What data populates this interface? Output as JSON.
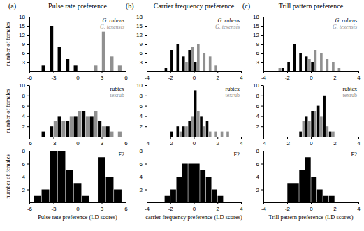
{
  "chart_data": [
    {
      "type": "histogram",
      "title": "(a)",
      "subtitle": "Pulse rate preference",
      "y_label": "number of females",
      "bins": [
        -4.5,
        -3.5,
        -2.5,
        -1.5,
        -0.5,
        0.5,
        1.5,
        2.5,
        3.5,
        4.5,
        5.5
      ],
      "series": [
        {
          "name": "G. rubens",
          "color": "#000000",
          "values": [
            2,
            15,
            8,
            4,
            2,
            0,
            0,
            0,
            0,
            0
          ]
        },
        {
          "name": "G. texensis",
          "color": "#909090",
          "values": [
            0,
            0,
            0,
            0,
            0,
            0,
            2,
            13,
            5,
            2
          ]
        }
      ],
      "xlim": [
        -6,
        6
      ],
      "xticks": [
        -6,
        -3,
        0,
        3,
        6
      ],
      "ylim": [
        0,
        18
      ],
      "yticks": [
        3,
        6,
        9,
        12,
        15,
        18
      ],
      "legend": "upper right"
    },
    {
      "type": "histogram",
      "title": "(b)",
      "subtitle": "Carrier frequency preference",
      "bins": [
        -3,
        -2.5,
        -2,
        -1.5,
        -1,
        -0.5,
        0,
        0.5,
        1,
        1.5,
        2,
        2.5,
        3
      ],
      "series": [
        {
          "name": "G. rubens",
          "color": "#000000",
          "values": [
            0,
            1,
            7,
            9,
            5,
            7,
            3,
            0,
            0,
            0,
            0,
            0
          ]
        },
        {
          "name": "G. texensis",
          "color": "#909090",
          "values": [
            0,
            0,
            0,
            0,
            3,
            8,
            9,
            6,
            5,
            2,
            0,
            0
          ]
        }
      ],
      "xlim": [
        -4,
        4
      ],
      "xticks": [
        -4,
        -2,
        0,
        2,
        4
      ],
      "ylim": [
        0,
        18
      ],
      "yticks": [
        3,
        6,
        9,
        12,
        15,
        18
      ],
      "legend": "upper right"
    },
    {
      "type": "histogram",
      "title": "(c)",
      "subtitle": "Trill pattern preference",
      "bins": [
        -3,
        -2.5,
        -2,
        -1.5,
        -1,
        -0.5,
        0,
        0.5,
        1,
        1.5,
        2,
        2.5,
        3
      ],
      "series": [
        {
          "name": "G. rubens",
          "color": "#000000",
          "values": [
            0,
            1,
            3,
            9,
            6,
            5,
            3,
            0,
            0,
            0,
            0,
            0
          ]
        },
        {
          "name": "G. texensis",
          "color": "#909090",
          "values": [
            1,
            0,
            0,
            0,
            0,
            4,
            7,
            6,
            4,
            3,
            1,
            0
          ]
        }
      ],
      "xlim": [
        -4,
        4
      ],
      "xticks": [
        -4,
        -2,
        0,
        2,
        4
      ],
      "ylim": [
        0,
        18
      ],
      "yticks": [
        3,
        6,
        9,
        12,
        15,
        18
      ],
      "legend": "upper right"
    },
    {
      "type": "histogram",
      "y_label": "number of females",
      "bins": [
        -5.5,
        -4.5,
        -3.5,
        -2.5,
        -1.5,
        -0.5,
        0.5,
        1.5,
        2.5,
        3.5,
        4.5,
        5.5
      ],
      "series": [
        {
          "name": "rubtex",
          "color": "#000000",
          "values": [
            0,
            1,
            2,
            4,
            3,
            4,
            5,
            4,
            3,
            2,
            0
          ]
        },
        {
          "name": "texrub",
          "color": "#909090",
          "values": [
            0,
            0,
            3,
            3,
            4,
            5,
            4,
            5,
            2,
            1,
            1
          ]
        }
      ],
      "xlim": [
        -6,
        6
      ],
      "xticks": [
        -6,
        -3,
        0,
        3,
        6
      ],
      "ylim": [
        0,
        10
      ],
      "yticks": [
        2,
        4,
        6,
        8,
        10
      ],
      "legend": "upper right"
    },
    {
      "type": "histogram",
      "bins": [
        -3,
        -2.5,
        -2,
        -1.5,
        -1,
        -0.5,
        0,
        0.5,
        1,
        1.5,
        2,
        2.5,
        3
      ],
      "series": [
        {
          "name": "rubtex",
          "color": "#000000",
          "values": [
            0,
            0,
            1,
            2,
            2,
            3,
            9,
            4,
            3,
            0,
            0,
            0
          ]
        },
        {
          "name": "texrub",
          "color": "#909090",
          "values": [
            0,
            0,
            0,
            1,
            2,
            4,
            5,
            2,
            1,
            1,
            1,
            1
          ]
        }
      ],
      "xlim": [
        -4,
        4
      ],
      "xticks": [
        -4,
        -2,
        0,
        2,
        4
      ],
      "ylim": [
        0,
        10
      ],
      "yticks": [
        2,
        4,
        6,
        8,
        10
      ],
      "legend": "upper right"
    },
    {
      "type": "histogram",
      "bins": [
        -3,
        -2.5,
        -2,
        -1.5,
        -1,
        -0.5,
        0,
        0.5,
        1,
        1.5,
        2,
        2.5,
        3
      ],
      "series": [
        {
          "name": "rubtex",
          "color": "#000000",
          "values": [
            0,
            0,
            0,
            0,
            1,
            4,
            5,
            6,
            8,
            1,
            0,
            0
          ]
        },
        {
          "name": "texrub",
          "color": "#909090",
          "values": [
            0,
            0,
            0,
            0,
            3,
            3,
            5,
            4,
            2,
            1,
            0,
            0
          ]
        }
      ],
      "xlim": [
        -4,
        4
      ],
      "xticks": [
        -4,
        -2,
        0,
        2,
        4
      ],
      "ylim": [
        0,
        10
      ],
      "yticks": [
        2,
        4,
        6,
        8,
        10
      ],
      "legend": "upper right"
    },
    {
      "type": "histogram",
      "y_label": "number of females",
      "x_label": "Pulse rate preference (LD scores)",
      "bins": [
        -5.5,
        -4.5,
        -3.5,
        -2.5,
        -1.5,
        -0.5,
        0.5,
        1.5,
        2.5,
        3.5,
        4.5,
        5.5
      ],
      "series": [
        {
          "name": "F2",
          "color": "#000000",
          "values": [
            1,
            2,
            8,
            8,
            5,
            3,
            1,
            0,
            7,
            4,
            2
          ]
        }
      ],
      "xlim": [
        -6,
        6
      ],
      "xticks": [
        -6,
        -3,
        0,
        3,
        6
      ],
      "ylim": [
        0,
        8
      ],
      "yticks": [
        2,
        4,
        6,
        8
      ],
      "legend": "upper right"
    },
    {
      "type": "histogram",
      "x_label": "carrier frequency preference (LD scores)",
      "bins": [
        -3,
        -2.5,
        -2,
        -1.5,
        -1,
        -0.5,
        0,
        0.5,
        1,
        1.5,
        2,
        2.5,
        3
      ],
      "series": [
        {
          "name": "F2",
          "color": "#000000",
          "values": [
            0,
            1,
            2,
            4,
            6,
            6,
            6,
            5,
            4,
            2,
            1,
            0
          ]
        }
      ],
      "xlim": [
        -4,
        4
      ],
      "xticks": [
        -4,
        -2,
        0,
        2,
        4
      ],
      "ylim": [
        0,
        8
      ],
      "yticks": [
        2,
        4,
        6,
        8
      ],
      "legend": "upper right"
    },
    {
      "type": "histogram",
      "x_label": "Trill pattern preference (LD scores)",
      "bins": [
        -3,
        -2.5,
        -2,
        -1.5,
        -1,
        -0.5,
        0,
        0.5,
        1,
        1.5,
        2,
        2.5,
        3
      ],
      "series": [
        {
          "name": "F2",
          "color": "#000000",
          "values": [
            0,
            0,
            3,
            3,
            5,
            7,
            4,
            2,
            1,
            1,
            0,
            0
          ]
        }
      ],
      "xlim": [
        -4,
        4
      ],
      "xticks": [
        -4,
        -2,
        0,
        2,
        4
      ],
      "ylim": [
        0,
        8
      ],
      "yticks": [
        2,
        4,
        6,
        8
      ],
      "legend": "upper right"
    }
  ]
}
